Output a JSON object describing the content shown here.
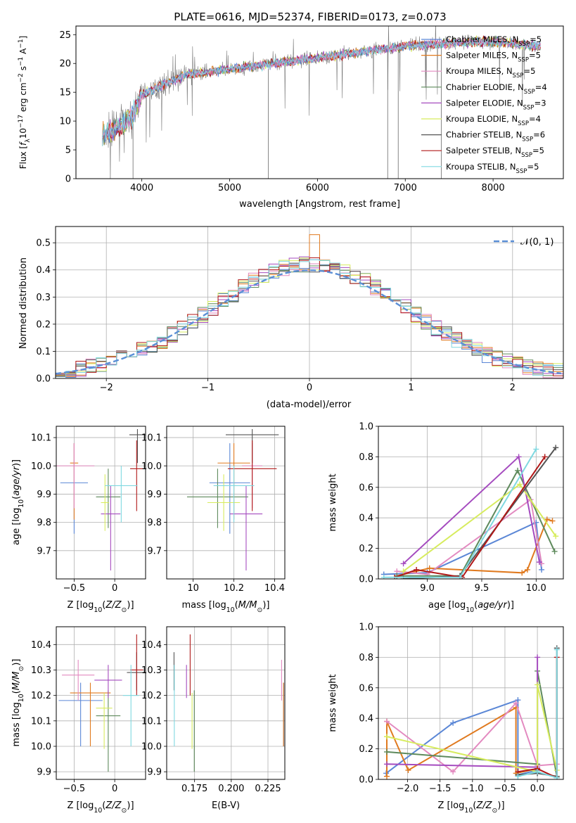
{
  "figure": {
    "title": "PLATE=0616, MJD=52374, FIBERID=0173, z=0.073"
  },
  "colors": {
    "Chabrier MILES": "#5b87d6",
    "Salpeter MILES": "#e07a1f",
    "Kroupa MILES": "#e38ac0",
    "Chabrier ELODIE": "#5e8a5c",
    "Salpeter ELODIE": "#a54bbf",
    "Kroupa ELODIE": "#d7ec5e",
    "Chabrier STELIB": "#555555",
    "Salpeter STELIB": "#b01818",
    "Kroupa STELIB": "#7fd8e0",
    "data": "#7a7a7a"
  },
  "chart_data": [
    {
      "panel": "spectrum",
      "type": "line",
      "title": "PLATE=0616, MJD=52374, FIBERID=0173, z=0.073",
      "xlabel": "wavelength [Angstrom, rest frame]",
      "ylabel": "Flux [f_λ 10^-17 erg cm^-2 s^-1 A^-1]",
      "xlim": [
        3250,
        8800
      ],
      "ylim": [
        0,
        26.5
      ],
      "xticks": [
        4000,
        5000,
        6000,
        7000,
        8000
      ],
      "yticks": [
        0,
        5,
        10,
        15,
        20,
        25
      ],
      "legend_loc": "upper right",
      "legend": [
        {
          "label": "Chabrier MILES, N_SSP=5",
          "color": "Chabrier MILES"
        },
        {
          "label": "Salpeter MILES, N_SSP=5",
          "color": "Salpeter MILES"
        },
        {
          "label": "Kroupa MILES, N_SSP=5",
          "color": "Kroupa MILES"
        },
        {
          "label": "Chabrier ELODIE, N_SSP=4",
          "color": "Chabrier ELODIE"
        },
        {
          "label": "Salpeter ELODIE, N_SSP=3",
          "color": "Salpeter ELODIE"
        },
        {
          "label": "Kroupa ELODIE, N_SSP=4",
          "color": "Kroupa ELODIE"
        },
        {
          "label": "Chabrier STELIB, N_SSP=6",
          "color": "Chabrier STELIB"
        },
        {
          "label": "Salpeter STELIB, N_SSP=5",
          "color": "Salpeter STELIB"
        },
        {
          "label": "Kroupa STELIB, N_SSP=5",
          "color": "Kroupa STELIB"
        }
      ],
      "continuum": {
        "x": [
          3550,
          3700,
          3900,
          4000,
          4200,
          4500,
          5000,
          5500,
          6000,
          6500,
          7000,
          7500,
          8000,
          8500
        ],
        "y": [
          7.5,
          8.5,
          11.0,
          14.5,
          16.0,
          18.0,
          19.0,
          20.0,
          21.0,
          22.0,
          23.0,
          23.5,
          23.8,
          23.0
        ]
      },
      "absorption_spikes": [
        {
          "x": 3900,
          "y": 0
        },
        {
          "x": 5440,
          "y": 0
        },
        {
          "x": 6800,
          "y": 0
        },
        {
          "x": 6920,
          "y": 0
        },
        {
          "x": 7410,
          "y": 0
        }
      ]
    },
    {
      "panel": "residuals",
      "type": "line",
      "xlabel": "(data-model)/error",
      "ylabel": "Normed distribution",
      "xlim": [
        -2.5,
        2.5
      ],
      "ylim": [
        0,
        0.56
      ],
      "xticks": [
        -2,
        -1,
        0,
        1,
        2
      ],
      "yticks": [
        0.0,
        0.1,
        0.2,
        0.3,
        0.4,
        0.5
      ],
      "legend_loc": "upper right",
      "legend": [
        {
          "label": "𝒩(0, 1)",
          "color": "Chabrier MILES",
          "style": "dashed"
        }
      ],
      "hist_center_max": 0.42,
      "peak": {
        "x": 0.0,
        "y": 0.53
      }
    },
    {
      "panel": "age_vs_Z",
      "type": "scatter",
      "xlabel": "Z [log10(Z/Z⊙)]",
      "ylabel": "age  [log10(age/yr)]",
      "xlim": [
        -0.72,
        0.38
      ],
      "ylim": [
        9.6,
        10.14
      ],
      "xticks": [
        -0.5,
        0.0
      ],
      "yticks": [
        9.7,
        9.8,
        9.9,
        10.0,
        10.1
      ],
      "points": [
        {
          "model": "Chabrier MILES",
          "x": -0.5,
          "xerr": 0.17,
          "y": 9.94,
          "yerr": [
            0.18,
            0.14
          ]
        },
        {
          "model": "Salpeter MILES",
          "x": -0.5,
          "xerr": 0.05,
          "y": 10.01,
          "yerr": [
            0.2,
            0.07
          ]
        },
        {
          "model": "Kroupa MILES",
          "x": -0.5,
          "xerr": 0.25,
          "y": 10.0,
          "yerr": [
            0.15,
            0.08
          ]
        },
        {
          "model": "Chabrier ELODIE",
          "x": -0.08,
          "xerr": 0.15,
          "y": 9.89,
          "yerr": [
            0.11,
            0.1
          ]
        },
        {
          "model": "Salpeter ELODIE",
          "x": -0.05,
          "xerr": 0.12,
          "y": 9.83,
          "yerr": [
            0.2,
            0.1
          ]
        },
        {
          "model": "Kroupa ELODIE",
          "x": -0.12,
          "xerr": 0.05,
          "y": 9.87,
          "yerr": [
            0.1,
            0.1
          ]
        },
        {
          "model": "Chabrier STELIB",
          "x": 0.28,
          "xerr": 0.1,
          "y": 10.11,
          "yerr": [
            0.1,
            0.02
          ]
        },
        {
          "model": "Salpeter STELIB",
          "x": 0.27,
          "xerr": 0.08,
          "y": 9.99,
          "yerr": [
            0.15,
            0.1
          ]
        },
        {
          "model": "Kroupa STELIB",
          "x": 0.08,
          "xerr": 0.2,
          "y": 9.93,
          "yerr": [
            0.13,
            0.07
          ]
        }
      ]
    },
    {
      "panel": "age_vs_mass",
      "type": "scatter",
      "xlabel": "mass [log10(M/M⊙)]",
      "ylabel": "",
      "xlim": [
        9.87,
        10.45
      ],
      "ylim": [
        9.6,
        10.14
      ],
      "xticks": [
        10.0,
        10.2,
        10.4
      ],
      "yticks": [
        9.7,
        9.8,
        9.9,
        10.0,
        10.1
      ],
      "points": [
        {
          "model": "Chabrier MILES",
          "x": 10.18,
          "xerr": 0.1,
          "y": 9.94,
          "yerr": [
            0.18,
            0.14
          ]
        },
        {
          "model": "Salpeter MILES",
          "x": 10.2,
          "xerr": 0.08,
          "y": 10.01,
          "yerr": [
            0.2,
            0.07
          ]
        },
        {
          "model": "Kroupa MILES",
          "x": 10.29,
          "xerr": 0.05,
          "y": 10.0,
          "yerr": [
            0.15,
            0.08
          ]
        },
        {
          "model": "Chabrier ELODIE",
          "x": 10.12,
          "xerr": 0.15,
          "y": 9.89,
          "yerr": [
            0.11,
            0.1
          ]
        },
        {
          "model": "Salpeter ELODIE",
          "x": 10.26,
          "xerr": 0.08,
          "y": 9.83,
          "yerr": [
            0.2,
            0.1
          ]
        },
        {
          "model": "Kroupa ELODIE",
          "x": 10.15,
          "xerr": 0.08,
          "y": 9.87,
          "yerr": [
            0.1,
            0.1
          ]
        },
        {
          "model": "Chabrier STELIB",
          "x": 10.29,
          "xerr": 0.13,
          "y": 10.11,
          "yerr": [
            0.1,
            0.02
          ]
        },
        {
          "model": "Salpeter STELIB",
          "x": 10.29,
          "xerr": 0.12,
          "y": 9.99,
          "yerr": [
            0.15,
            0.1
          ]
        },
        {
          "model": "Kroupa STELIB",
          "x": 10.2,
          "xerr": 0.1,
          "y": 9.93,
          "yerr": [
            0.13,
            0.07
          ]
        }
      ]
    },
    {
      "panel": "mass_weight_vs_age",
      "type": "line",
      "xlabel": "age  [log10(age/yr)]",
      "ylabel": "mass weight",
      "xlim": [
        8.55,
        10.25
      ],
      "ylim": [
        0,
        1.0
      ],
      "xticks": [
        9.0,
        9.5,
        10.0
      ],
      "yticks": [
        0.0,
        0.2,
        0.4,
        0.6,
        0.8,
        1.0
      ],
      "series": [
        {
          "model": "Chabrier MILES",
          "x": [
            8.6,
            9.0,
            10.0,
            10.05
          ],
          "y": [
            0.03,
            0.04,
            0.37,
            0.06
          ]
        },
        {
          "model": "Salpeter MILES",
          "x": [
            8.72,
            9.02,
            9.87,
            9.92,
            10.1,
            10.15
          ],
          "y": [
            0.02,
            0.07,
            0.04,
            0.06,
            0.39,
            0.38
          ]
        },
        {
          "model": "Kroupa MILES",
          "x": [
            8.72,
            9.0,
            9.95,
            10.05
          ],
          "y": [
            0.05,
            0.03,
            0.52,
            0.1
          ]
        },
        {
          "model": "Chabrier ELODIE",
          "x": [
            8.72,
            9.3,
            9.83,
            10.17
          ],
          "y": [
            0.02,
            0.02,
            0.71,
            0.18
          ]
        },
        {
          "model": "Salpeter ELODIE",
          "x": [
            8.78,
            9.84,
            10.03
          ],
          "y": [
            0.1,
            0.8,
            0.11
          ]
        },
        {
          "model": "Kroupa ELODIE",
          "x": [
            8.78,
            9.85,
            10.18
          ],
          "y": [
            0.05,
            0.62,
            0.28
          ]
        },
        {
          "model": "Chabrier STELIB",
          "x": [
            8.78,
            9.3,
            10.18
          ],
          "y": [
            0.0,
            0.02,
            0.86
          ]
        },
        {
          "model": "Salpeter STELIB",
          "x": [
            8.7,
            8.9,
            9.32,
            10.08
          ],
          "y": [
            0.01,
            0.06,
            0.01,
            0.8
          ]
        },
        {
          "model": "Kroupa STELIB",
          "x": [
            8.6,
            9.3,
            10.0
          ],
          "y": [
            0.01,
            0.01,
            0.85
          ]
        }
      ]
    },
    {
      "panel": "mass_vs_Z",
      "type": "scatter",
      "xlabel": "Z [log10(Z/Z⊙)]",
      "ylabel": "mass [log10(M/M⊙)]",
      "xlim": [
        -0.72,
        0.38
      ],
      "ylim": [
        9.87,
        10.47
      ],
      "xticks": [
        -0.5,
        0.0
      ],
      "yticks": [
        9.9,
        10.0,
        10.1,
        10.2,
        10.3,
        10.4
      ],
      "points": [
        {
          "model": "Chabrier MILES",
          "x": -0.42,
          "xerr": 0.27,
          "y": 10.18,
          "yerr": [
            0.18,
            0.07
          ]
        },
        {
          "model": "Salpeter MILES",
          "x": -0.3,
          "xerr": 0.25,
          "y": 10.21,
          "yerr": [
            0.21,
            0.04
          ]
        },
        {
          "model": "Kroupa MILES",
          "x": -0.45,
          "xerr": 0.2,
          "y": 10.28,
          "yerr": [
            0.1,
            0.06
          ]
        },
        {
          "model": "Chabrier ELODIE",
          "x": -0.08,
          "xerr": 0.15,
          "y": 10.12,
          "yerr": [
            0.22,
            0.1
          ]
        },
        {
          "model": "Salpeter ELODIE",
          "x": -0.08,
          "xerr": 0.17,
          "y": 10.26,
          "yerr": [
            0.07,
            0.06
          ]
        },
        {
          "model": "Kroupa ELODIE",
          "x": -0.13,
          "xerr": 0.1,
          "y": 10.15,
          "yerr": [
            0.16,
            0.06
          ]
        },
        {
          "model": "Chabrier STELIB",
          "x": 0.27,
          "xerr": 0.12,
          "y": 10.29,
          "yerr": [
            0.07,
            0.08
          ]
        },
        {
          "model": "Salpeter STELIB",
          "x": 0.27,
          "xerr": 0.08,
          "y": 10.3,
          "yerr": [
            0.1,
            0.14
          ]
        },
        {
          "model": "Kroupa STELIB",
          "x": 0.2,
          "xerr": 0.1,
          "y": 10.2,
          "yerr": [
            0.2,
            0.12
          ]
        }
      ]
    },
    {
      "panel": "mass_vs_EBV",
      "type": "scatter",
      "xlabel": "E(B-V)",
      "ylabel": "",
      "xlim": [
        0.156,
        0.2365
      ],
      "ylim": [
        9.87,
        10.47
      ],
      "xticks": [
        0.175,
        0.2,
        0.225
      ],
      "xticklabels": [
        "0.175",
        "0.200",
        "0.225"
      ],
      "yticks": [
        9.9,
        10.0,
        10.1,
        10.2,
        10.3,
        10.4
      ],
      "points": [
        {
          "model": "Chabrier MILES",
          "x": 0.2357,
          "y": 10.18,
          "yerr": [
            0.18,
            0.07
          ]
        },
        {
          "model": "Salpeter MILES",
          "x": 0.2356,
          "y": 10.21,
          "yerr": [
            0.21,
            0.04
          ]
        },
        {
          "model": "Kroupa MILES",
          "x": 0.2343,
          "y": 10.28,
          "yerr": [
            0.1,
            0.06
          ]
        },
        {
          "model": "Chabrier ELODIE",
          "x": 0.1748,
          "y": 10.12,
          "yerr": [
            0.22,
            0.1
          ]
        },
        {
          "model": "Salpeter ELODIE",
          "x": 0.1695,
          "y": 10.26,
          "yerr": [
            0.07,
            0.06
          ]
        },
        {
          "model": "Kroupa ELODIE",
          "x": 0.1733,
          "y": 10.15,
          "yerr": [
            0.16,
            0.06
          ]
        },
        {
          "model": "Chabrier STELIB",
          "x": 0.161,
          "y": 10.29,
          "yerr": [
            0.07,
            0.08
          ]
        },
        {
          "model": "Salpeter STELIB",
          "x": 0.172,
          "y": 10.3,
          "yerr": [
            0.1,
            0.14
          ]
        },
        {
          "model": "Kroupa STELIB",
          "x": 0.1612,
          "y": 10.2,
          "yerr": [
            0.2,
            0.12
          ]
        }
      ]
    },
    {
      "panel": "mass_weight_vs_Z",
      "type": "line",
      "xlabel": "Z [log10(Z/Z⊙)]",
      "ylabel": "mass weight",
      "xlim": [
        -2.45,
        0.4
      ],
      "ylim": [
        0,
        1.0
      ],
      "xticks": [
        -2.0,
        -1.5,
        -1.0,
        -0.5,
        0.0
      ],
      "xticklabels": [
        "−2.0",
        "−1.5",
        "−1.0",
        "−0.5",
        "0.0"
      ],
      "yticks": [
        0.0,
        0.2,
        0.4,
        0.6,
        0.8,
        1.0
      ],
      "series": [
        {
          "model": "Chabrier MILES",
          "x": [
            -2.33,
            -1.3,
            -0.3,
            -0.3,
            0.0
          ],
          "y": [
            0.04,
            0.37,
            0.52,
            0.03,
            0.06
          ]
        },
        {
          "model": "Salpeter MILES",
          "x": [
            -2.32,
            -2.32,
            -1.99,
            -0.33,
            -0.33,
            0.0
          ],
          "y": [
            0.02,
            0.38,
            0.06,
            0.47,
            0.04,
            0.07
          ]
        },
        {
          "model": "Kroupa MILES",
          "x": [
            -2.32,
            -1.3,
            -0.33,
            0.0,
            0.3
          ],
          "y": [
            0.38,
            0.05,
            0.5,
            0.09,
            0.1
          ]
        },
        {
          "model": "Chabrier ELODIE",
          "x": [
            -2.32,
            0.0,
            0.0,
            0.3
          ],
          "y": [
            0.18,
            0.1,
            0.71,
            0.02
          ]
        },
        {
          "model": "Salpeter ELODIE",
          "x": [
            -2.32,
            0.0,
            0.0
          ],
          "y": [
            0.1,
            0.08,
            0.8
          ]
        },
        {
          "model": "Kroupa ELODIE",
          "x": [
            -2.32,
            0.0,
            0.0,
            0.3
          ],
          "y": [
            0.28,
            0.05,
            0.62,
            0.06
          ]
        },
        {
          "model": "Chabrier STELIB",
          "x": [
            -0.3,
            0.0,
            0.3,
            0.3
          ],
          "y": [
            0.03,
            0.04,
            0.02,
            0.86
          ]
        },
        {
          "model": "Salpeter STELIB",
          "x": [
            -0.3,
            0.0,
            0.3,
            0.3
          ],
          "y": [
            0.05,
            0.07,
            0.01,
            0.8
          ]
        },
        {
          "model": "Kroupa STELIB",
          "x": [
            -0.3,
            0.0,
            0.3,
            0.3
          ],
          "y": [
            0.02,
            0.05,
            0.01,
            0.85
          ]
        }
      ]
    }
  ]
}
